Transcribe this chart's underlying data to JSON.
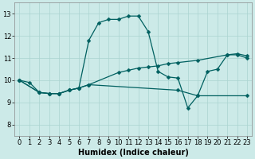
{
  "xlabel": "Humidex (Indice chaleur)",
  "xlim": [
    -0.5,
    23.5
  ],
  "ylim": [
    7.5,
    13.5
  ],
  "xticks": [
    0,
    1,
    2,
    3,
    4,
    5,
    6,
    7,
    8,
    9,
    10,
    11,
    12,
    13,
    14,
    15,
    16,
    17,
    18,
    19,
    20,
    21,
    22,
    23
  ],
  "yticks": [
    8,
    9,
    10,
    11,
    12,
    13
  ],
  "bg_color": "#cceae8",
  "grid_color": "#aad4d0",
  "line_color": "#006060",
  "line1_x": [
    0,
    1,
    2,
    3,
    4,
    5,
    6,
    7,
    8,
    9,
    10,
    11,
    12,
    13,
    14,
    15,
    16,
    17,
    18,
    19,
    20,
    21,
    22,
    23
  ],
  "line1_y": [
    10.0,
    9.9,
    9.45,
    9.4,
    9.4,
    9.55,
    9.65,
    11.8,
    12.6,
    12.75,
    12.75,
    12.9,
    12.9,
    12.2,
    10.4,
    10.15,
    10.1,
    8.75,
    9.3,
    10.4,
    10.5,
    11.15,
    11.15,
    11.0
  ],
  "line2_x": [
    0,
    2,
    3,
    4,
    5,
    6,
    7,
    10,
    11,
    12,
    13,
    14,
    15,
    16,
    18,
    21,
    22,
    23
  ],
  "line2_y": [
    10.0,
    9.45,
    9.4,
    9.4,
    9.55,
    9.65,
    9.8,
    10.35,
    10.45,
    10.55,
    10.6,
    10.65,
    10.75,
    10.8,
    10.9,
    11.15,
    11.2,
    11.1
  ],
  "line3_x": [
    0,
    2,
    3,
    4,
    5,
    6,
    7,
    16,
    18,
    23
  ],
  "line3_y": [
    10.0,
    9.45,
    9.4,
    9.4,
    9.55,
    9.65,
    9.8,
    9.55,
    9.3,
    9.3
  ],
  "font_size_xlabel": 7,
  "font_size_ticks": 6,
  "marker_size": 2.5,
  "linewidth": 0.9
}
